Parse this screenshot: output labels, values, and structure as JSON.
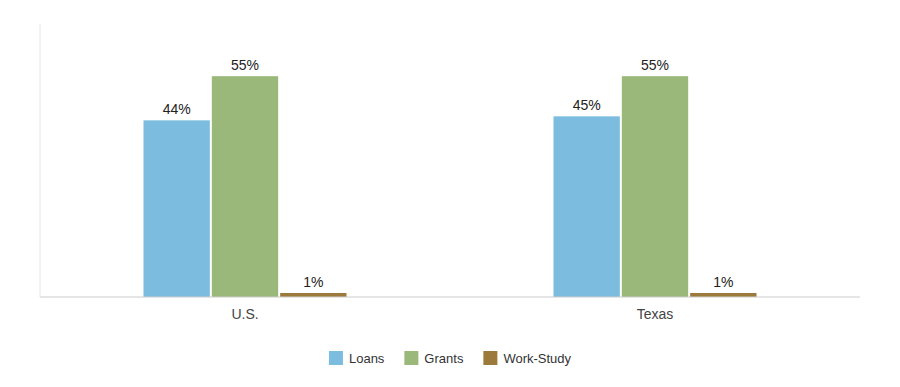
{
  "chart_data": {
    "type": "bar",
    "categories": [
      "U.S.",
      "Texas"
    ],
    "series": [
      {
        "name": "Loans",
        "color": "#7CBCDF",
        "values": [
          44,
          45
        ],
        "value_labels": [
          "44%",
          "45%"
        ]
      },
      {
        "name": "Grants",
        "color": "#9AB87A",
        "values": [
          55,
          55
        ],
        "value_labels": [
          "55%",
          "55%"
        ]
      },
      {
        "name": "Work-Study",
        "color": "#9B7A3C",
        "values": [
          1,
          1
        ],
        "value_labels": [
          "1%",
          "1%"
        ]
      }
    ],
    "ylim": [
      0,
      68
    ],
    "grid": false,
    "legend": "bottom",
    "data_labels": true,
    "tick_labels": "x"
  }
}
